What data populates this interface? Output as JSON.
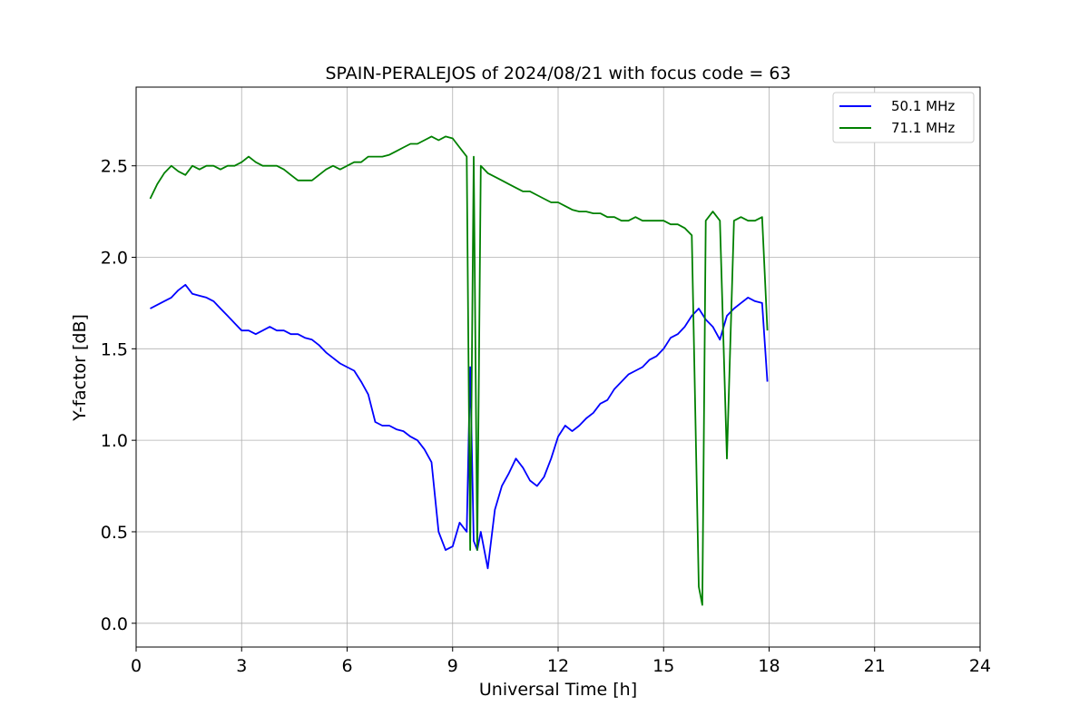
{
  "chart_data": {
    "type": "line",
    "title": "SPAIN-PERALEJOS of 2024/08/21 with focus code = 63",
    "xlabel": "Universal Time [h]",
    "ylabel": "Y-factor [dB]",
    "xlim": [
      0,
      24
    ],
    "ylim": [
      -0.13,
      2.93
    ],
    "x_ticks": [
      0,
      3,
      6,
      9,
      12,
      15,
      18,
      21,
      24
    ],
    "y_ticks": [
      0.0,
      0.5,
      1.0,
      1.5,
      2.0,
      2.5
    ],
    "grid": true,
    "legend_position": "top-right",
    "series": [
      {
        "name": "50.1 MHz",
        "color": "#0000ff",
        "x": [
          0.4,
          0.6,
          0.8,
          1.0,
          1.2,
          1.4,
          1.6,
          1.8,
          2.0,
          2.2,
          2.4,
          2.6,
          2.8,
          3.0,
          3.2,
          3.4,
          3.6,
          3.8,
          4.0,
          4.2,
          4.4,
          4.6,
          4.8,
          5.0,
          5.2,
          5.4,
          5.6,
          5.8,
          6.0,
          6.2,
          6.4,
          6.6,
          6.8,
          7.0,
          7.2,
          7.4,
          7.6,
          7.8,
          8.0,
          8.2,
          8.4,
          8.6,
          8.8,
          9.0,
          9.2,
          9.4,
          9.5,
          9.6,
          9.7,
          9.8,
          10.0,
          10.2,
          10.4,
          10.6,
          10.8,
          11.0,
          11.2,
          11.4,
          11.6,
          11.8,
          12.0,
          12.2,
          12.4,
          12.6,
          12.8,
          13.0,
          13.2,
          13.4,
          13.6,
          13.8,
          14.0,
          14.2,
          14.4,
          14.6,
          14.8,
          15.0,
          15.2,
          15.4,
          15.6,
          15.8,
          16.0,
          16.2,
          16.4,
          16.6,
          16.8,
          17.0,
          17.2,
          17.4,
          17.6,
          17.8,
          17.95
        ],
        "y": [
          1.72,
          1.74,
          1.76,
          1.78,
          1.82,
          1.85,
          1.8,
          1.79,
          1.78,
          1.76,
          1.72,
          1.68,
          1.64,
          1.6,
          1.6,
          1.58,
          1.6,
          1.62,
          1.6,
          1.6,
          1.58,
          1.58,
          1.56,
          1.55,
          1.52,
          1.48,
          1.45,
          1.42,
          1.4,
          1.38,
          1.32,
          1.25,
          1.1,
          1.08,
          1.08,
          1.06,
          1.05,
          1.02,
          1.0,
          0.95,
          0.88,
          0.5,
          0.4,
          0.42,
          0.55,
          0.5,
          1.4,
          0.45,
          0.4,
          0.5,
          0.3,
          0.62,
          0.75,
          0.82,
          0.9,
          0.85,
          0.78,
          0.75,
          0.8,
          0.9,
          1.02,
          1.08,
          1.05,
          1.08,
          1.12,
          1.15,
          1.2,
          1.22,
          1.28,
          1.32,
          1.36,
          1.38,
          1.4,
          1.44,
          1.46,
          1.5,
          1.56,
          1.58,
          1.62,
          1.68,
          1.72,
          1.66,
          1.62,
          1.55,
          1.68,
          1.72,
          1.75,
          1.78,
          1.76,
          1.75,
          1.32
        ]
      },
      {
        "name": "71.1 MHz",
        "color": "#008000",
        "x": [
          0.4,
          0.6,
          0.8,
          1.0,
          1.2,
          1.4,
          1.6,
          1.8,
          2.0,
          2.2,
          2.4,
          2.6,
          2.8,
          3.0,
          3.2,
          3.4,
          3.6,
          3.8,
          4.0,
          4.2,
          4.4,
          4.6,
          4.8,
          5.0,
          5.2,
          5.4,
          5.6,
          5.8,
          6.0,
          6.2,
          6.4,
          6.6,
          6.8,
          7.0,
          7.2,
          7.4,
          7.6,
          7.8,
          8.0,
          8.2,
          8.4,
          8.6,
          8.8,
          9.0,
          9.2,
          9.4,
          9.5,
          9.6,
          9.7,
          9.8,
          10.0,
          10.2,
          10.4,
          10.6,
          10.8,
          11.0,
          11.2,
          11.4,
          11.6,
          11.8,
          12.0,
          12.2,
          12.4,
          12.6,
          12.8,
          13.0,
          13.2,
          13.4,
          13.6,
          13.8,
          14.0,
          14.2,
          14.4,
          14.6,
          14.8,
          15.0,
          15.2,
          15.4,
          15.6,
          15.8,
          16.0,
          16.1,
          16.2,
          16.4,
          16.6,
          16.8,
          17.0,
          17.2,
          17.4,
          17.6,
          17.8,
          17.95
        ],
        "y": [
          2.32,
          2.4,
          2.46,
          2.5,
          2.47,
          2.45,
          2.5,
          2.48,
          2.5,
          2.5,
          2.48,
          2.5,
          2.5,
          2.52,
          2.55,
          2.52,
          2.5,
          2.5,
          2.5,
          2.48,
          2.45,
          2.42,
          2.42,
          2.42,
          2.45,
          2.48,
          2.5,
          2.48,
          2.5,
          2.52,
          2.52,
          2.55,
          2.55,
          2.55,
          2.56,
          2.58,
          2.6,
          2.62,
          2.62,
          2.64,
          2.66,
          2.64,
          2.66,
          2.65,
          2.6,
          2.55,
          0.4,
          2.55,
          0.4,
          2.5,
          2.46,
          2.44,
          2.42,
          2.4,
          2.38,
          2.36,
          2.36,
          2.34,
          2.32,
          2.3,
          2.3,
          2.28,
          2.26,
          2.25,
          2.25,
          2.24,
          2.24,
          2.22,
          2.22,
          2.2,
          2.2,
          2.22,
          2.2,
          2.2,
          2.2,
          2.2,
          2.18,
          2.18,
          2.16,
          2.12,
          0.2,
          0.1,
          2.2,
          2.25,
          2.2,
          0.9,
          2.2,
          2.22,
          2.2,
          2.2,
          2.22,
          1.6
        ]
      }
    ]
  }
}
